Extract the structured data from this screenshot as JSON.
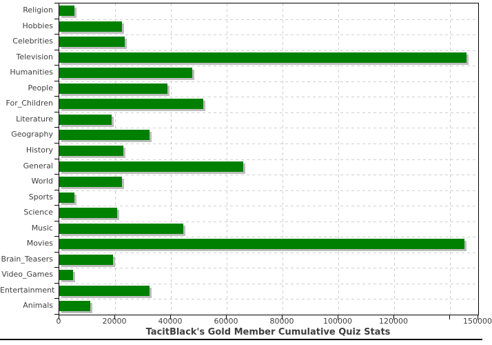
{
  "chart_data": {
    "type": "bar",
    "orientation": "horizontal",
    "title": "TacitBlack's Gold Member Cumulative Quiz Stats",
    "xlabel": "",
    "ylabel": "",
    "xlim": [
      0,
      150000
    ],
    "grid": "dashed-both-axes",
    "legend": "none",
    "categories": [
      "Religion",
      "Hobbies",
      "Celebrities",
      "Television",
      "Humanities",
      "People",
      "For_Children",
      "Literature",
      "Geography",
      "History",
      "General",
      "World",
      "Sports",
      "Science",
      "Music",
      "Movies",
      "Brain_Teasers",
      "Video_Games",
      "Entertainment",
      "Animals"
    ],
    "values": [
      5500,
      22500,
      23500,
      145800,
      47600,
      38700,
      51500,
      18800,
      32300,
      23000,
      65800,
      22500,
      5500,
      20800,
      44300,
      145000,
      19300,
      5000,
      32400,
      11000
    ],
    "x_ticks": [
      {
        "value": 0,
        "label": "0"
      },
      {
        "value": 20000,
        "label": "20000"
      },
      {
        "value": 40000,
        "label": "40000"
      },
      {
        "value": 60000,
        "label": "60000"
      },
      {
        "value": 80000,
        "label": "80000"
      },
      {
        "value": 100000,
        "label": "100000"
      },
      {
        "value": 120000,
        "label": "120000"
      },
      {
        "value": 140000,
        "label": ""
      },
      {
        "value": 150000,
        "label": "150000"
      }
    ],
    "colors": {
      "bar": "#008000",
      "bar_shadow": "#bcbcbc",
      "grid": "#cfcfcf",
      "axis": "#000000",
      "text": "#3f3f3f"
    }
  }
}
